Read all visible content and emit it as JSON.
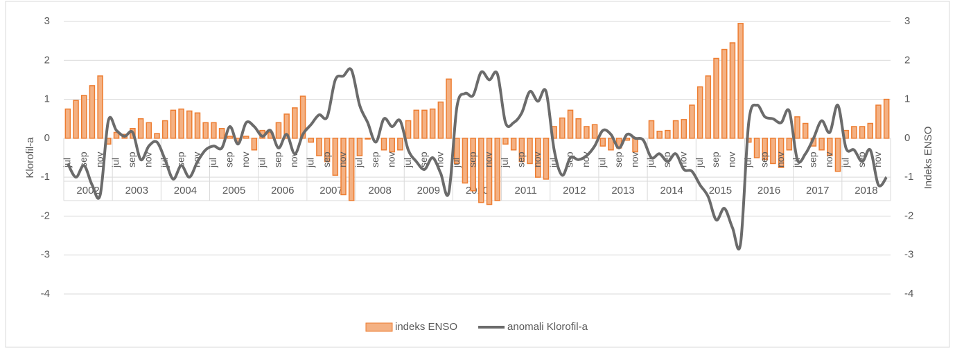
{
  "chart_data": {
    "type": "bar-line",
    "ylabel": "Klorofil-a",
    "y2label": "Indeks ENSO",
    "groups": [
      "2002",
      "2003",
      "2004",
      "2005",
      "2006",
      "2007",
      "2008",
      "2009",
      "2010",
      "2011",
      "2012",
      "2013",
      "2014",
      "2015",
      "2016",
      "2017",
      "2018"
    ],
    "categories": [
      "jul",
      null,
      "sep",
      null,
      "nov",
      null,
      "jul",
      null,
      "sep",
      null,
      "nov",
      null,
      "jul",
      null,
      "sep",
      null,
      "nov",
      null,
      "jul",
      null,
      "sep",
      null,
      "nov",
      null,
      "jul",
      null,
      "sep",
      null,
      "nov",
      null,
      "jul",
      null,
      "sep",
      null,
      "nov",
      null,
      "jul",
      null,
      "sep",
      null,
      "nov",
      null,
      "jul",
      null,
      "sep",
      null,
      "nov",
      null,
      "jul",
      null,
      "sep",
      null,
      "nov",
      null,
      "jul",
      null,
      "sep",
      null,
      "nov",
      null,
      "jul",
      null,
      "sep",
      null,
      "nov",
      null,
      "jul",
      null,
      "sep",
      null,
      "nov",
      null,
      "jul",
      null,
      "sep",
      null,
      "nov",
      null,
      "jul",
      null,
      "sep",
      null,
      "nov",
      null,
      "jul",
      null,
      "sep",
      null,
      "nov",
      null,
      "jul",
      null,
      "sep",
      null,
      "nov",
      null,
      "jul",
      null,
      "sep",
      null,
      "nov",
      null
    ],
    "series": [
      {
        "name": "indeks ENSO",
        "kind": "bar",
        "color": "#ed7d31",
        "fill": "#f4b183",
        "values": [
          0.75,
          0.97,
          1.1,
          1.35,
          1.6,
          -0.15,
          0.15,
          0.1,
          0.25,
          0.5,
          0.4,
          0.12,
          0.45,
          0.72,
          0.75,
          0.7,
          0.65,
          0.4,
          0.4,
          0.25,
          0.05,
          -0.1,
          0.05,
          -0.3,
          0.2,
          0.15,
          0.4,
          0.62,
          0.78,
          1.08,
          -0.1,
          -0.45,
          -0.6,
          -0.95,
          -1.45,
          -1.6,
          -0.45,
          -0.02,
          0,
          -0.3,
          -0.35,
          -0.3,
          0.45,
          0.72,
          0.72,
          0.75,
          0.93,
          1.52,
          -0.65,
          -1.15,
          -1.35,
          -1.65,
          -1.7,
          -1.6,
          -0.15,
          -0.3,
          -0.6,
          -0.65,
          -1.0,
          -1.05,
          0.3,
          0.52,
          0.72,
          0.5,
          0.3,
          0.35,
          -0.2,
          -0.3,
          -0.25,
          -0.05,
          -0.35,
          0,
          0.45,
          0.18,
          0.2,
          0.45,
          0.48,
          0.85,
          1.32,
          1.6,
          2.05,
          2.28,
          2.45,
          2.95,
          -0.1,
          -0.5,
          -0.55,
          -0.65,
          -0.75,
          -0.3,
          0.55,
          0.38,
          -0.2,
          -0.3,
          -0.45,
          -0.85,
          0.2,
          0.3,
          0.3,
          0.38,
          0.85,
          1.0
        ]
      },
      {
        "name": "anomali Klorofil-a",
        "kind": "line",
        "color": "#6b6b6b",
        "values": [
          -0.65,
          -1.0,
          -0.7,
          -1.2,
          -1.45,
          0.45,
          0.2,
          0.05,
          0.15,
          -0.55,
          -0.2,
          -0.1,
          -0.55,
          -1.05,
          -0.7,
          -1.0,
          -0.6,
          -0.3,
          -0.2,
          -0.25,
          0.3,
          -0.15,
          0.4,
          0.3,
          0.05,
          0.2,
          -0.25,
          0.1,
          -0.4,
          0.1,
          0.35,
          0.6,
          0.55,
          1.5,
          1.6,
          1.75,
          0.85,
          0.4,
          -0.1,
          0.5,
          0.3,
          0.45,
          -0.3,
          -0.6,
          -0.8,
          -0.5,
          -0.9,
          -1.4,
          0.8,
          1.15,
          1.1,
          1.7,
          1.5,
          1.65,
          0.4,
          0.4,
          0.65,
          1.2,
          0.95,
          1.2,
          -0.3,
          -0.95,
          -0.5,
          -0.55,
          -0.45,
          -0.2,
          0.2,
          0.1,
          -0.25,
          0.1,
          0,
          -0.05,
          -0.5,
          -0.4,
          -0.6,
          -0.4,
          -0.8,
          -0.85,
          -1.2,
          -1.5,
          -2.1,
          -1.8,
          -2.3,
          -2.7,
          0.4,
          0.85,
          0.55,
          0.5,
          0.4,
          0.7,
          -0.55,
          -0.4,
          0,
          0.45,
          0.15,
          0.85,
          -0.25,
          -0.3,
          -0.6,
          -0.3,
          -1.2,
          -1.0
        ]
      }
    ],
    "ylim": [
      -4,
      3
    ],
    "yticks": [
      -4,
      -3,
      -2,
      -1,
      0,
      1,
      2,
      3
    ],
    "y2lim": [
      -4,
      3
    ],
    "y2ticks": [
      -4,
      -3,
      -2,
      -1,
      0,
      1,
      2,
      3
    ],
    "grid": true,
    "legend": "bottom"
  }
}
